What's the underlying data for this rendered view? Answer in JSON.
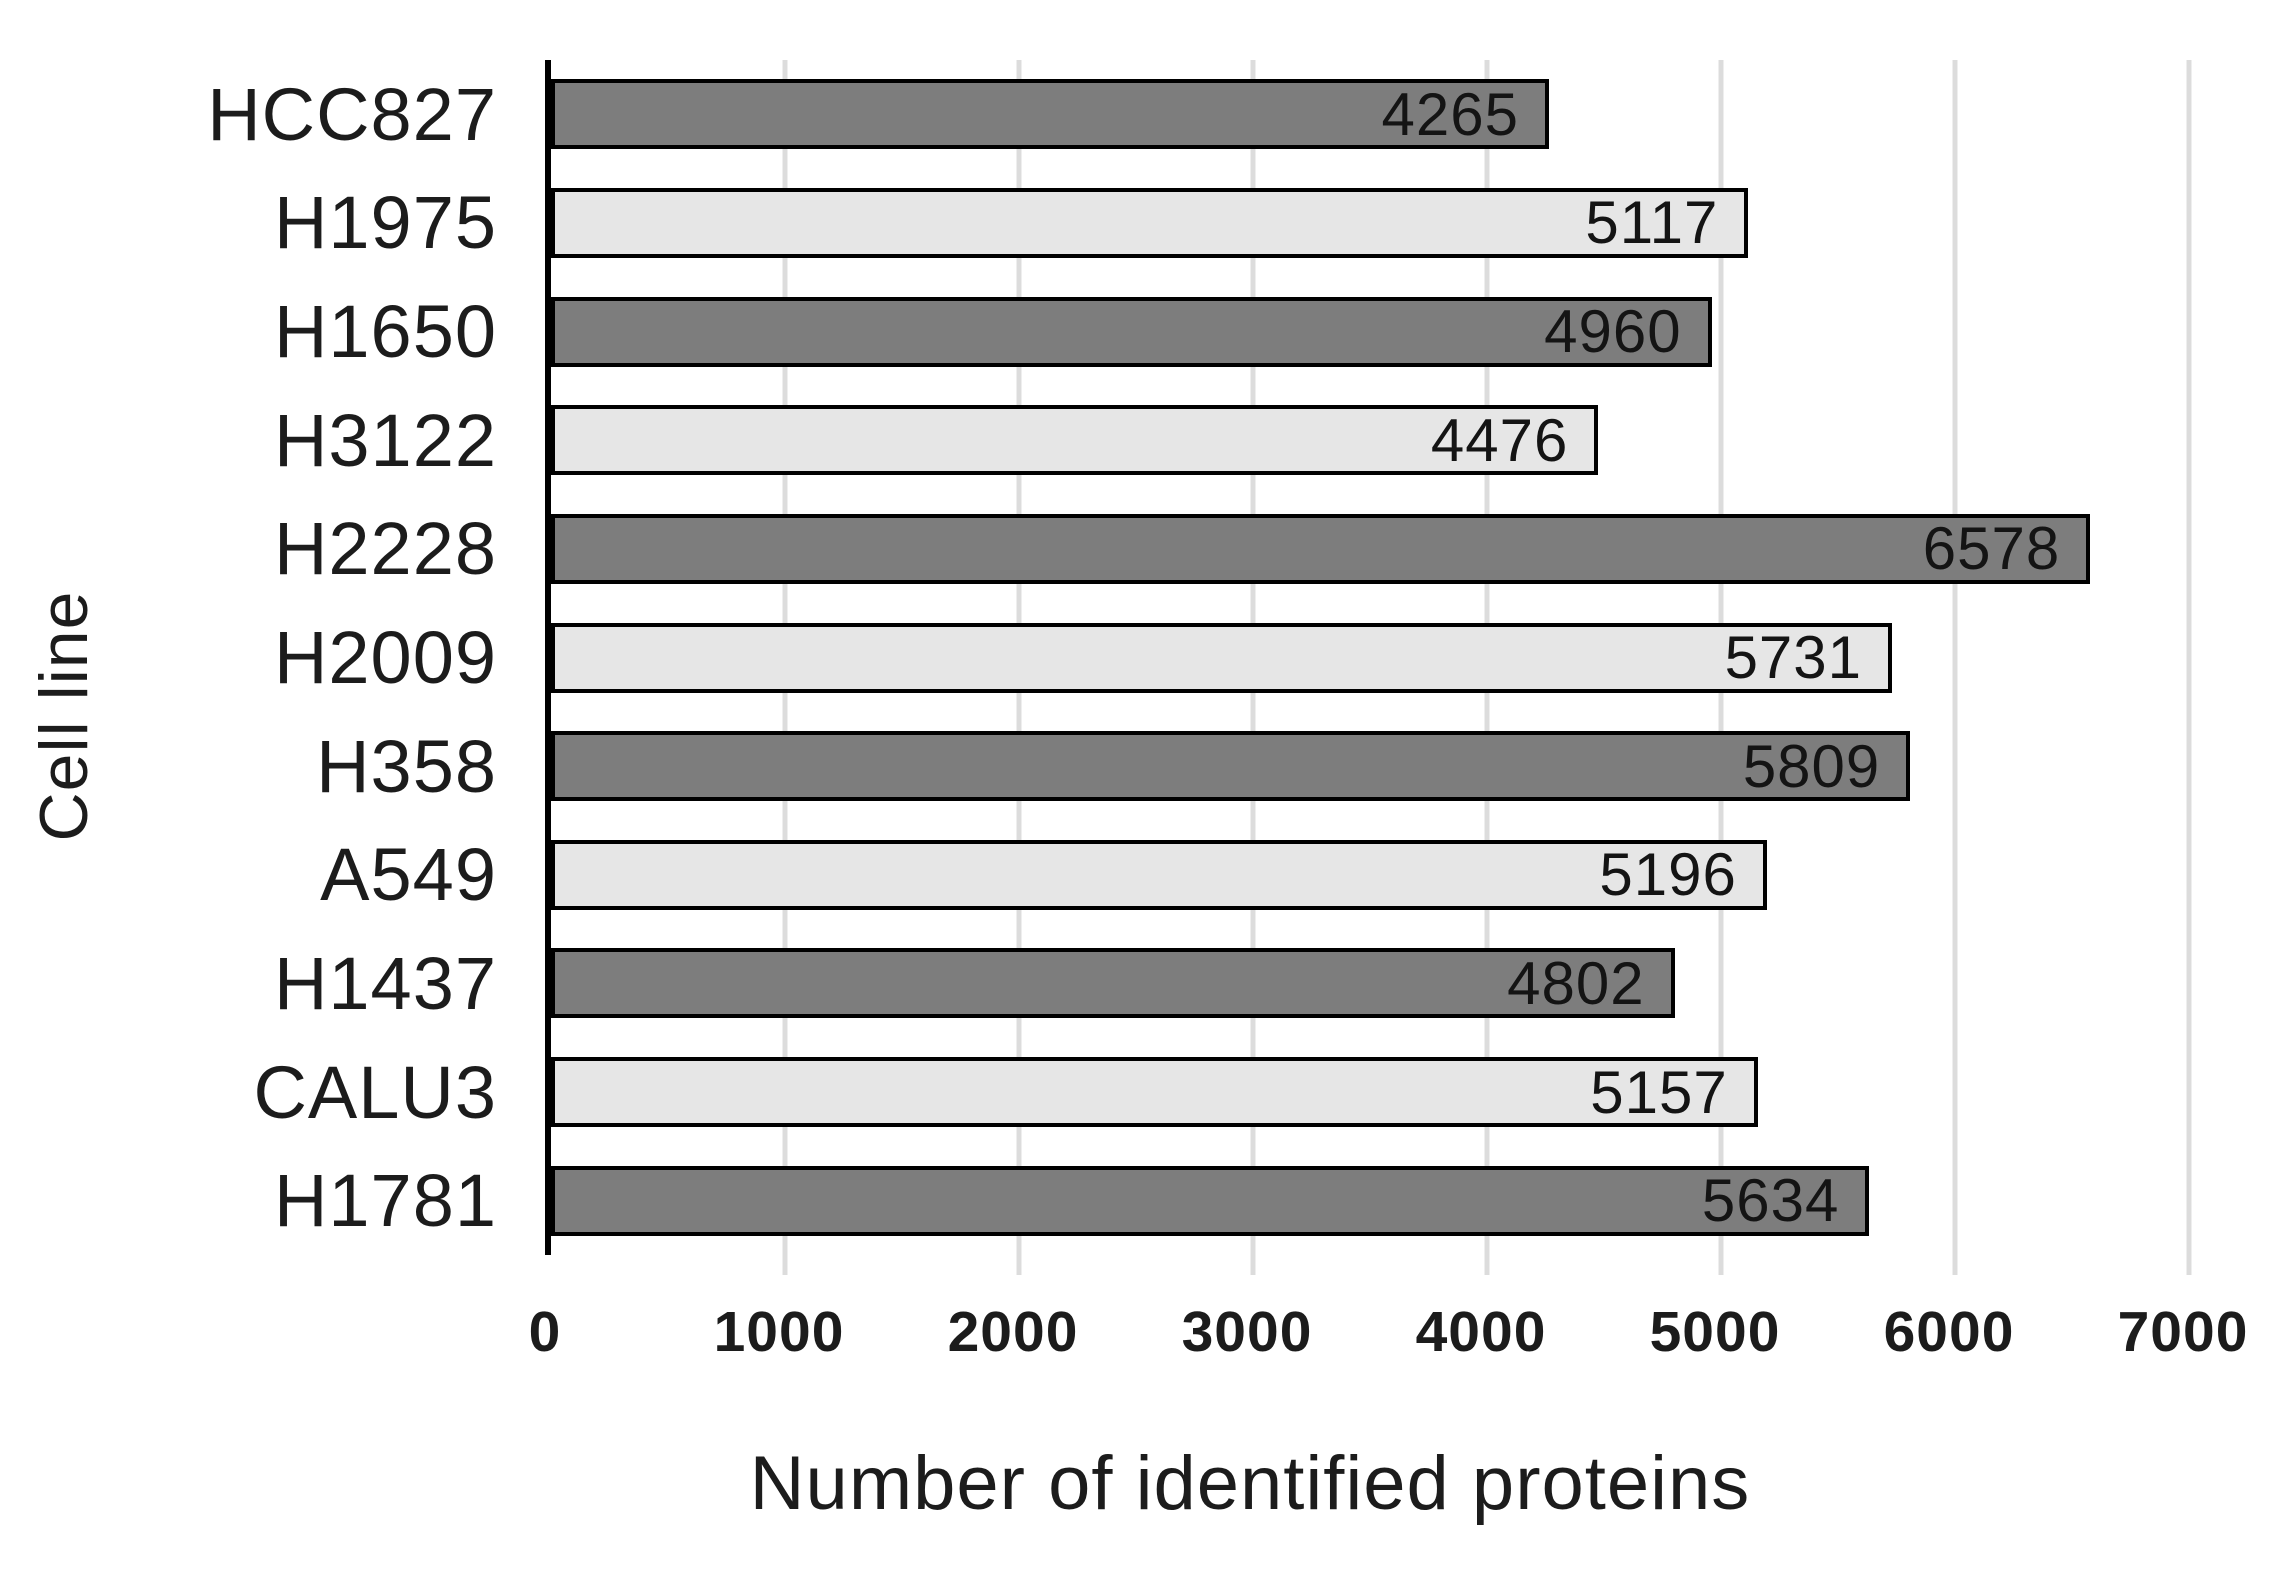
{
  "figure": {
    "background": "#FFFFFF"
  },
  "colors": {
    "bar_dark": "#7D7D7D",
    "bar_light": "#E6E6E6",
    "bar_border": "#000000",
    "gridline": "#DCDCDC",
    "axis_line": "#000000",
    "text": "#1C1C1C"
  },
  "chart_data": {
    "type": "bar",
    "orientation": "horizontal",
    "title": "",
    "xlabel": "Number of identified proteins",
    "ylabel": "Cell line",
    "categories": [
      "HCC827",
      "H1975",
      "H1650",
      "H3122",
      "H2228",
      "H2009",
      "H358",
      "A549",
      "H1437",
      "CALU3",
      "H1781"
    ],
    "values": [
      4265,
      5117,
      4960,
      4476,
      6578,
      5731,
      5809,
      5196,
      4802,
      5157,
      5634
    ],
    "bar_styles": [
      "dark",
      "light",
      "dark",
      "light",
      "dark",
      "light",
      "dark",
      "light",
      "dark",
      "light",
      "dark"
    ],
    "xlim": [
      0,
      7000
    ],
    "xticks": [
      0,
      1000,
      2000,
      3000,
      4000,
      5000,
      6000,
      7000
    ],
    "grid": true,
    "legend": false
  }
}
